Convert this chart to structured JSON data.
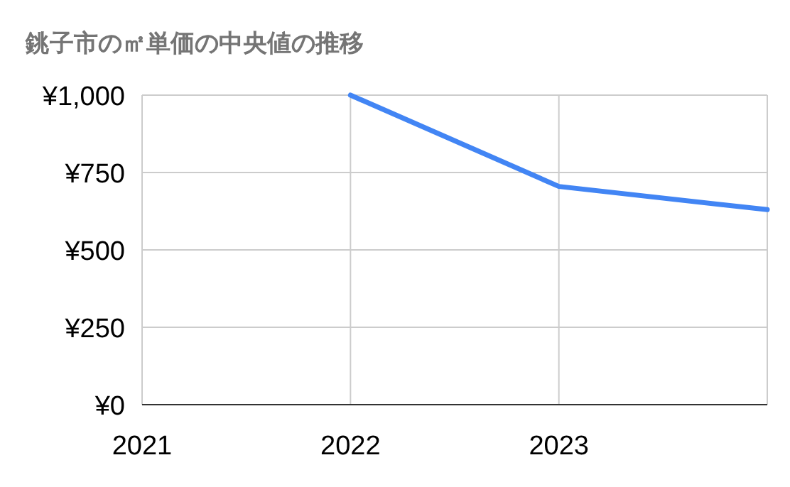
{
  "chart_data": {
    "type": "line",
    "title": "銚子市の㎡単価の中央値の推移",
    "x": [
      2022,
      2023,
      2024
    ],
    "series": [
      {
        "color": "#4285f4",
        "values": [
          1000,
          705,
          630
        ]
      }
    ],
    "xlim": [
      2021,
      2024
    ],
    "xticks": [
      2021,
      2022,
      2023
    ],
    "ylim": [
      0,
      1000
    ],
    "yticks": [
      {
        "value": 0,
        "label": "¥0"
      },
      {
        "value": 250,
        "label": "¥250"
      },
      {
        "value": 500,
        "label": "¥500"
      },
      {
        "value": 750,
        "label": "¥750"
      },
      {
        "value": 1000,
        "label": "¥1,000"
      }
    ],
    "grid": true
  }
}
